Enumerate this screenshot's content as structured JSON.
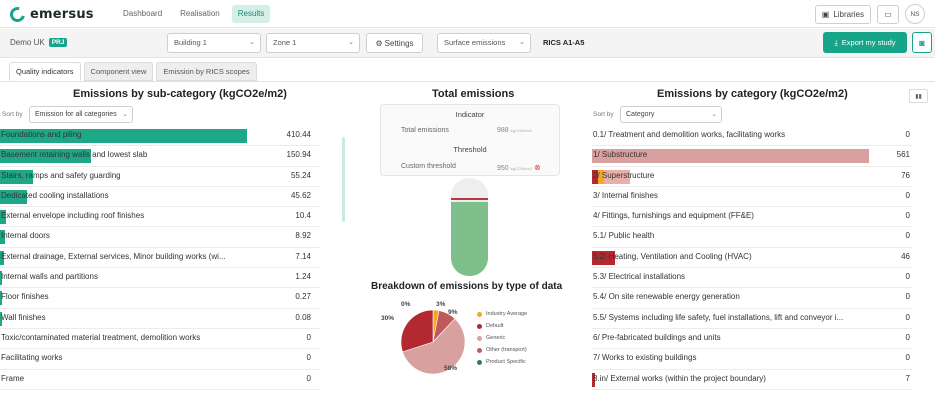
{
  "brand": {
    "name": "emersus",
    "accent": "#17a589"
  },
  "nav": {
    "items": [
      {
        "label": "Dashboard"
      },
      {
        "label": "Realisation"
      },
      {
        "label": "Results"
      }
    ],
    "active": "Results"
  },
  "header_right": {
    "libraries_label": "Libraries",
    "user_initials": "NS"
  },
  "toolbar": {
    "project_name": "Demo UK",
    "project_badge": "PRJ",
    "building": "Building 1",
    "zone": "Zone 1",
    "settings_label": "Settings",
    "emissions_select": "Surface emissions",
    "rics_label": "RICS A1-A5",
    "export_label": "Export my study"
  },
  "tabs": [
    {
      "label": "Quality indicators"
    },
    {
      "label": "Component view"
    },
    {
      "label": "Emission by RICS scopes"
    }
  ],
  "subcategory": {
    "title": "Emissions by sub-category (kgCO2e/m2)",
    "sort_label": "Sort by",
    "sort_value": "Emission for all categories",
    "bar_color": "#1fa887",
    "max": 410.44,
    "rows": [
      {
        "label": "Foundations and piling",
        "value": "410.44",
        "amount": 410.44
      },
      {
        "label": "Basement retaining walls and lowest slab",
        "value": "150.94",
        "amount": 150.94
      },
      {
        "label": "Stairs, ramps and safety guarding",
        "value": "55.24",
        "amount": 55.24
      },
      {
        "label": "Dedicated cooling installations",
        "value": "45.62",
        "amount": 45.62
      },
      {
        "label": "External envelope including roof finishes",
        "value": "10.4",
        "amount": 10.4
      },
      {
        "label": "Internal doors",
        "value": "8.92",
        "amount": 8.92
      },
      {
        "label": "External drainage, External services, Minor building works (wi...",
        "value": "7.14",
        "amount": 7.14
      },
      {
        "label": "Internal walls and partitions",
        "value": "1.24",
        "amount": 1.24
      },
      {
        "label": "Floor finishes",
        "value": "0.27",
        "amount": 0.27
      },
      {
        "label": "Wall finishes",
        "value": "0.08",
        "amount": 0.08
      },
      {
        "label": "Toxic/contaminated material treatment, demolition works",
        "value": "0",
        "amount": 0
      },
      {
        "label": "Facilitating works",
        "value": "0",
        "amount": 0
      },
      {
        "label": "Frame",
        "value": "0",
        "amount": 0
      }
    ]
  },
  "total": {
    "title": "Total emissions",
    "indicator_heading": "Indicator",
    "total_label": "Total emissions",
    "total_value": "988",
    "total_unit": "kgCO2e/m2",
    "threshold_heading": "Threshold",
    "threshold_label": "Custom threshold",
    "threshold_value": "950",
    "threshold_unit": "kgCO2e/m2",
    "gauge_fill_fraction": 0.76,
    "gauge_threshold_fraction": 0.78,
    "gauge_color": "#7fbf8b",
    "threshold_color": "#b33a3a"
  },
  "breakdown": {
    "title": "Breakdown of emissions by type of data",
    "legend": [
      {
        "label": "Industry Average",
        "color": "#f5a623"
      },
      {
        "label": "Default",
        "color": "#b22a2f"
      },
      {
        "label": "Generic",
        "color": "#d9a0a0"
      },
      {
        "label": "Other (transport)",
        "color": "#c05a5a"
      },
      {
        "label": "Product Specific",
        "color": "#2e7d5b"
      }
    ],
    "chart_data": {
      "type": "pie",
      "categories": [
        "Industry Average",
        "Default",
        "Generic",
        "Other (transport)",
        "Product Specific"
      ],
      "values": [
        3,
        30,
        58,
        9,
        0
      ],
      "labels": [
        "3%",
        "30%",
        "58%",
        "9%",
        "0%"
      ]
    }
  },
  "category": {
    "title": "Emissions by category (kgCO2e/m2)",
    "sort_label": "Sort by",
    "sort_value": "Category",
    "max": 561,
    "rows": [
      {
        "label": "0.1/ Treatment and demolition works, facilitating works",
        "value": "0",
        "amount": 0,
        "segments": []
      },
      {
        "label": "1/ Substructure",
        "value": "561",
        "amount": 561,
        "segments": [
          {
            "color": "#d9a0a0",
            "amount": 561
          }
        ]
      },
      {
        "label": "2/ Superstructure",
        "value": "76",
        "amount": 76,
        "segments": [
          {
            "color": "#b22a2f",
            "amount": 12
          },
          {
            "color": "#f5a623",
            "amount": 12
          },
          {
            "color": "#e8b0a8",
            "amount": 52
          }
        ]
      },
      {
        "label": "3/ Internal finishes",
        "value": "0",
        "amount": 0,
        "segments": []
      },
      {
        "label": "4/ Fittings, furnishings and equipment (FF&E)",
        "value": "0",
        "amount": 0,
        "segments": []
      },
      {
        "label": "5.1/ Public health",
        "value": "0",
        "amount": 0,
        "segments": []
      },
      {
        "label": "5.2/ Heating, Ventilation and Cooling (HVAC)",
        "value": "46",
        "amount": 46,
        "segments": [
          {
            "color": "#b22a2f",
            "amount": 46
          }
        ]
      },
      {
        "label": "5.3/ Electrical installations",
        "value": "0",
        "amount": 0,
        "segments": []
      },
      {
        "label": "5.4/ On site renewable energy generation",
        "value": "0",
        "amount": 0,
        "segments": []
      },
      {
        "label": "5.5/ Systems including life safety, fuel installations, lift and conveyor i...",
        "value": "0",
        "amount": 0,
        "segments": []
      },
      {
        "label": "6/ Pre-fabricated buildings and units",
        "value": "0",
        "amount": 0,
        "segments": []
      },
      {
        "label": "7/ Works to existing buildings",
        "value": "0",
        "amount": 0,
        "segments": []
      },
      {
        "label": "8.in/ External works (within the project boundary)",
        "value": "7",
        "amount": 7,
        "segments": [
          {
            "color": "#b22a2f",
            "amount": 7
          }
        ]
      }
    ]
  }
}
